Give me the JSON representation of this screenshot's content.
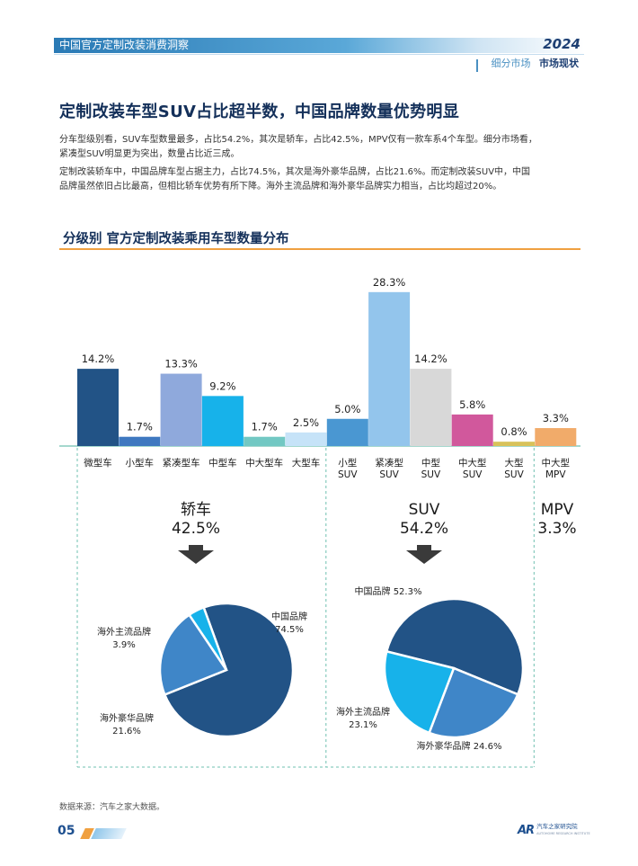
{
  "header": {
    "report_title": "中国官方定制改装消费洞察",
    "year": "2024",
    "breadcrumb_section": "细分市场",
    "breadcrumb_active": "市场现状"
  },
  "page_heading": "定制改装车型SUV占比超半数，中国品牌数量优势明显",
  "paragraphs": [
    [
      "分车型级别看，SUV车型数量最多，占比54.2%，其次是轿车，占比42.5%，MPV仅有一款车系4个车型。细分市场看，",
      "紧凑型SUV明显更为突出，数量占比近三成。"
    ],
    [
      "定制改装轿车中，中国品牌车型占据主力，占比74.5%，其次是海外豪华品牌，占比21.6%。而定制改装SUV中，中国",
      "品牌虽然依旧占比最高，但相比轿车优势有所下降。海外主流品牌和海外豪华品牌实力相当，占比均超过20%。"
    ]
  ],
  "section_title": "分级别 官方定制改装乘用车型数量分布",
  "chart_data": [
    {
      "type": "bar",
      "title": "分级别 官方定制改装乘用车型数量分布",
      "unit": "%",
      "ylim": [
        0,
        30
      ],
      "grid": false,
      "categories": [
        [
          "微型车"
        ],
        [
          "小型车"
        ],
        [
          "紧凑型车"
        ],
        [
          "中型车"
        ],
        [
          "中大型车"
        ],
        [
          "大型车"
        ],
        [
          "小型",
          "SUV"
        ],
        [
          "紧凑型",
          "SUV"
        ],
        [
          "中型",
          "SUV"
        ],
        [
          "中大型",
          "SUV"
        ],
        [
          "大型",
          "SUV"
        ],
        [
          "中大型",
          "MPV"
        ]
      ],
      "values": [
        14.2,
        1.7,
        13.3,
        9.2,
        1.7,
        2.5,
        5.0,
        28.3,
        14.2,
        5.8,
        0.8,
        3.3
      ],
      "labels": [
        "14.2%",
        "1.7%",
        "13.3%",
        "9.2%",
        "1.7%",
        "2.5%",
        "5.0%",
        "28.3%",
        "14.2%",
        "5.8%",
        "0.8%",
        "3.3%"
      ],
      "colors": [
        "#225386",
        "#3f78c0",
        "#8fa9dc",
        "#17b2ea",
        "#72c8c3",
        "#c6e3f8",
        "#4a97d2",
        "#93c5ec",
        "#d8d8d8",
        "#d1589c",
        "#d8c25a",
        "#f1ab6a"
      ],
      "groups": [
        {
          "name": "轿车",
          "share": "42.5%",
          "from": 0,
          "to": 5
        },
        {
          "name": "SUV",
          "share": "54.2%",
          "from": 6,
          "to": 10
        },
        {
          "name": "MPV",
          "share": "3.3%",
          "from": 11,
          "to": 11
        }
      ]
    },
    {
      "type": "pie",
      "title": "轿车",
      "slices": [
        {
          "name": "中国品牌",
          "value": 74.5,
          "label": "74.5%",
          "color": "#225386"
        },
        {
          "name": "海外豪华品牌",
          "value": 21.6,
          "label": "21.6%",
          "color": "#3f86c8"
        },
        {
          "name": "海外主流品牌",
          "value": 3.9,
          "label": "3.9%",
          "color": "#17b2ea"
        }
      ]
    },
    {
      "type": "pie",
      "title": "SUV",
      "slices": [
        {
          "name": "中国品牌",
          "value": 52.3,
          "label": "52.3%",
          "color": "#225386"
        },
        {
          "name": "海外豪华品牌",
          "value": 24.6,
          "label": "24.6%",
          "color": "#3f86c8"
        },
        {
          "name": "海外主流品牌",
          "value": 23.1,
          "label": "23.1%",
          "color": "#17b2ea"
        }
      ]
    }
  ],
  "footer": {
    "source": "数据来源：汽车之家大数据。",
    "page_number": "05",
    "logo_mark": "AR",
    "logo_text": "汽车之家研究院",
    "logo_en": "AUTOHOME RESEARCH INSTITUTE"
  },
  "colors": {
    "brand_dark": "#14305a",
    "accent": "#f0a040",
    "divider": "#6fc0b0"
  }
}
